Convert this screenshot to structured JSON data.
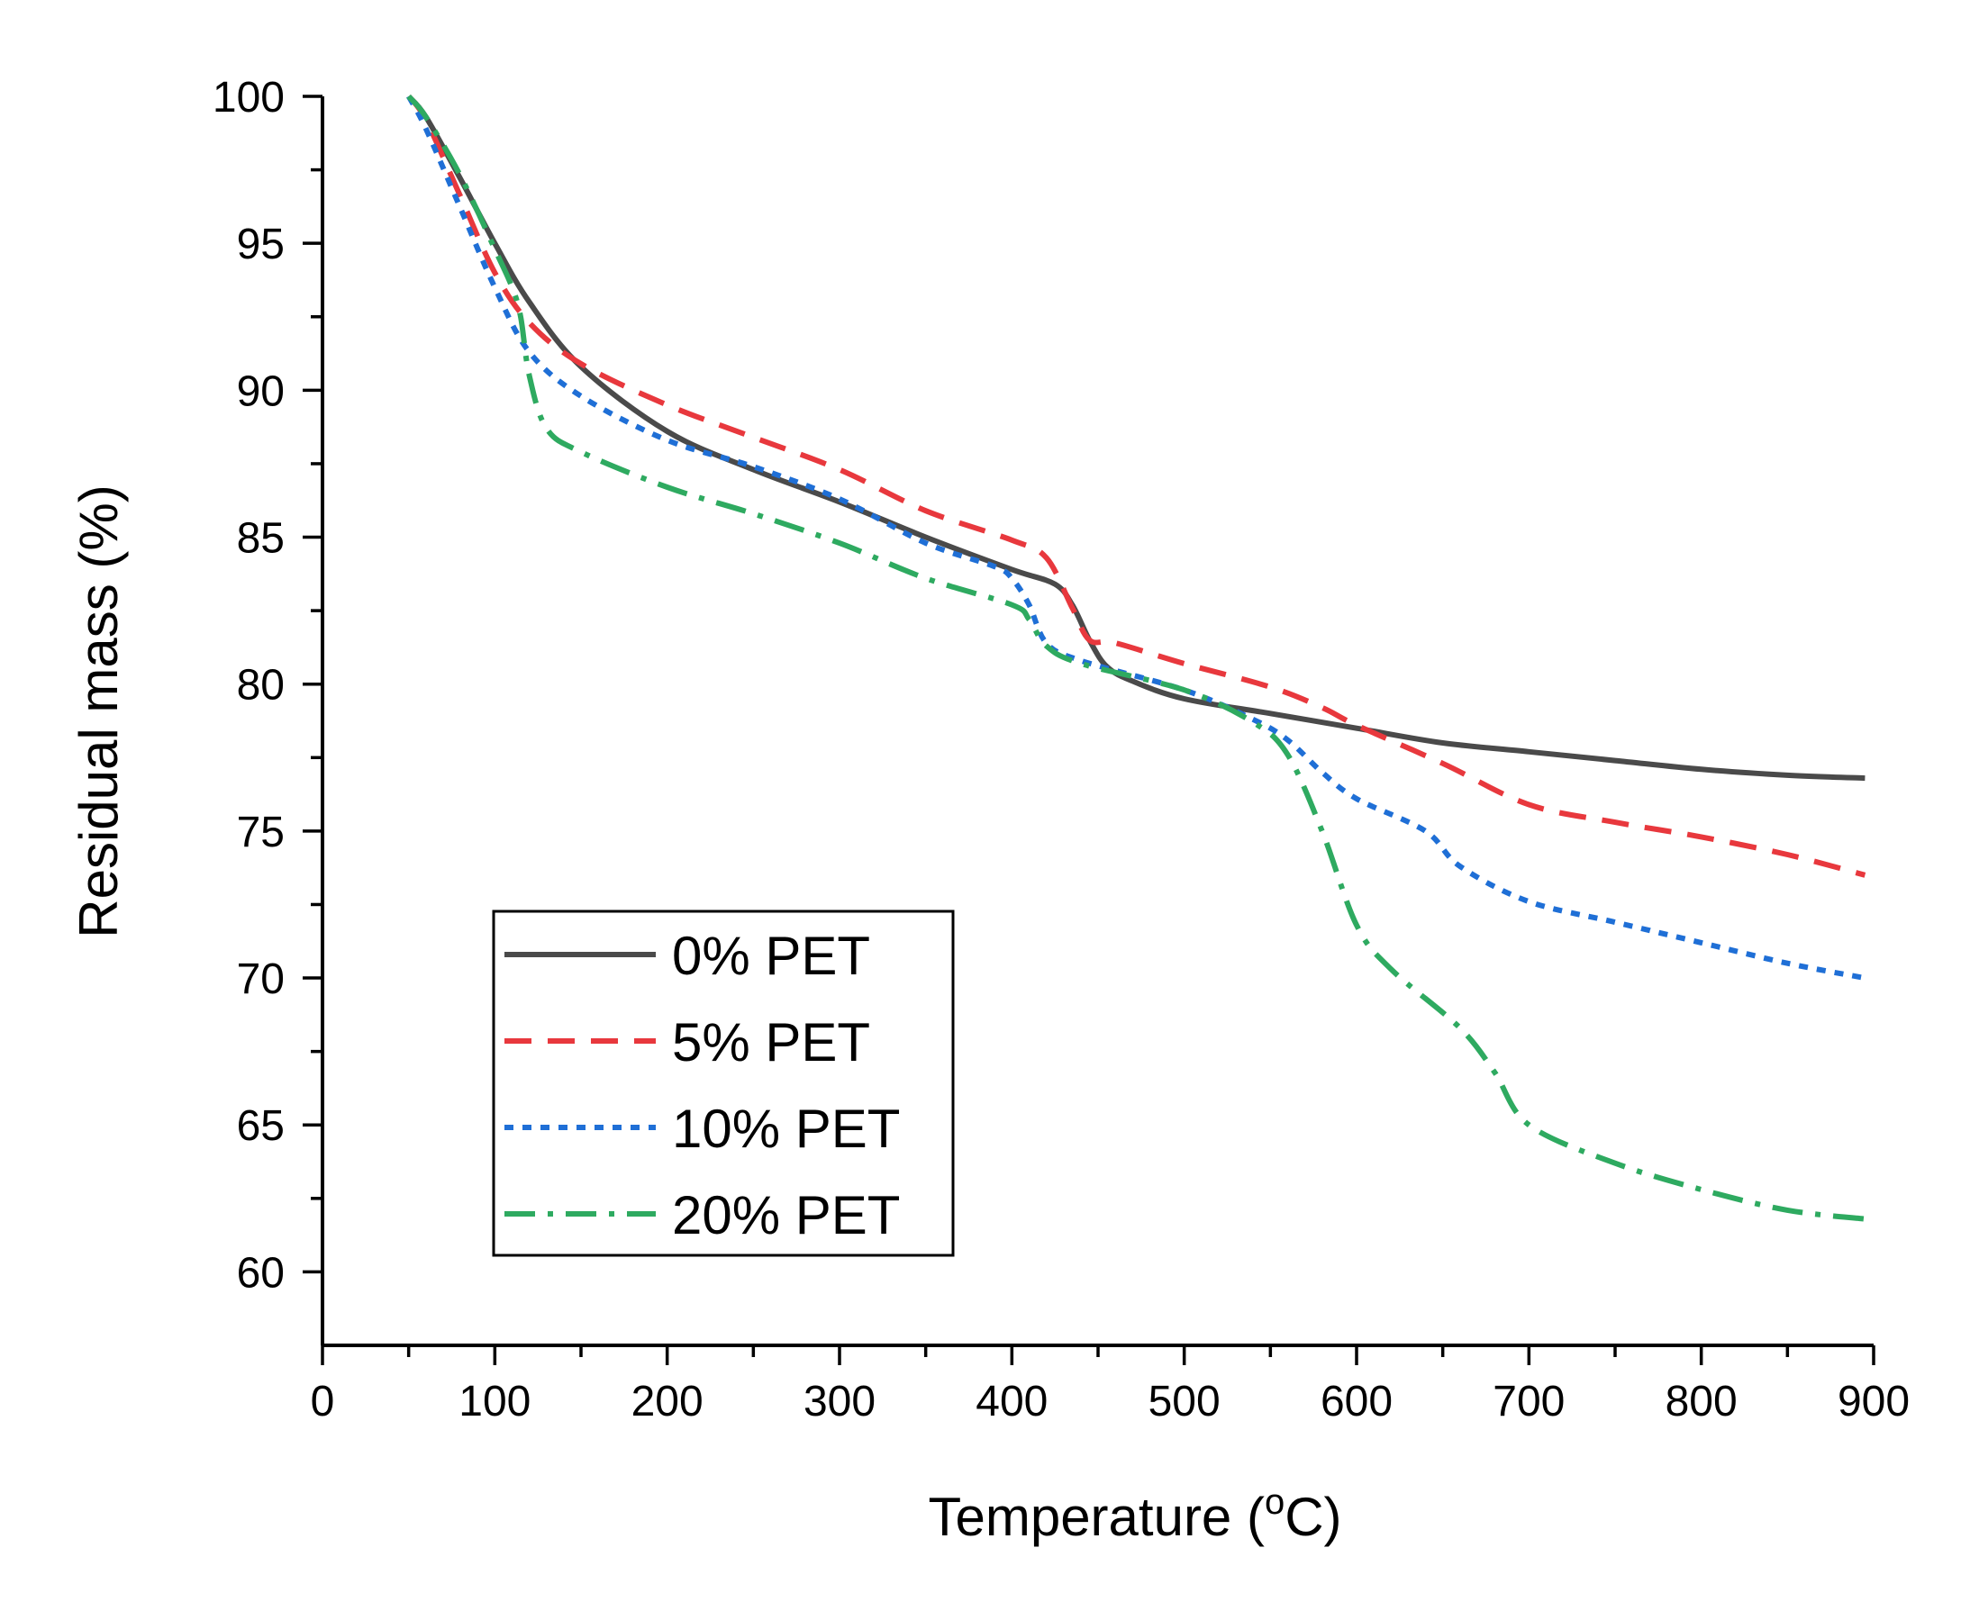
{
  "chart_data": {
    "type": "line",
    "title": "",
    "xlabel": "Temperature (",
    "xlabel_sup": "o",
    "xlabel_suffix": "C)",
    "ylabel": "Residual mass (%)",
    "xlim": [
      0,
      900
    ],
    "ylim": [
      57.5,
      100
    ],
    "xticks": [
      "0",
      "100",
      "200",
      "300",
      "400",
      "500",
      "600",
      "700",
      "800",
      "900"
    ],
    "yticks": [
      "60",
      "65",
      "70",
      "75",
      "80",
      "85",
      "90",
      "95",
      "100"
    ],
    "grid": false,
    "legend_position": "bottom-left",
    "series": [
      {
        "name": "0% PET",
        "color": "#4a4a4a",
        "style": "solid",
        "x": [
          50,
          60,
          80,
          100,
          120,
          150,
          200,
          250,
          300,
          350,
          400,
          425,
          435,
          445,
          455,
          470,
          500,
          550,
          600,
          650,
          700,
          750,
          800,
          850,
          895
        ],
        "y": [
          100,
          99.3,
          97.2,
          95.0,
          93.0,
          90.8,
          88.6,
          87.3,
          86.2,
          85.0,
          83.9,
          83.4,
          82.7,
          81.5,
          80.6,
          80.1,
          79.5,
          79.0,
          78.5,
          78.0,
          77.7,
          77.4,
          77.1,
          76.9,
          76.8
        ]
      },
      {
        "name": "5% PET",
        "color": "#e8383d",
        "style": "dashed",
        "x": [
          50,
          60,
          80,
          100,
          120,
          150,
          200,
          250,
          300,
          350,
          400,
          420,
          435,
          445,
          460,
          500,
          550,
          580,
          600,
          650,
          700,
          750,
          800,
          850,
          895
        ],
        "y": [
          100,
          99.2,
          96.6,
          94.0,
          92.3,
          90.9,
          89.5,
          88.4,
          87.3,
          85.9,
          84.9,
          84.3,
          82.6,
          81.5,
          81.4,
          80.7,
          79.9,
          79.2,
          78.6,
          77.3,
          75.9,
          75.3,
          74.8,
          74.2,
          73.5
        ]
      },
      {
        "name": "10% PET",
        "color": "#1f6fd6",
        "style": "dotted",
        "x": [
          50,
          60,
          80,
          100,
          120,
          150,
          200,
          250,
          300,
          350,
          390,
          400,
          410,
          420,
          440,
          500,
          540,
          560,
          580,
          600,
          640,
          660,
          700,
          750,
          800,
          850,
          895
        ],
        "y": [
          100,
          98.9,
          96.2,
          93.5,
          91.3,
          89.8,
          88.3,
          87.4,
          86.3,
          84.8,
          84.0,
          83.6,
          82.7,
          81.4,
          80.8,
          79.8,
          78.8,
          78.1,
          77.0,
          76.1,
          75.0,
          73.8,
          72.6,
          71.9,
          71.2,
          70.5,
          70.0
        ]
      },
      {
        "name": "20% PET",
        "color": "#2eaa60",
        "style": "dashdot",
        "x": [
          50,
          60,
          80,
          100,
          110,
          115,
          120,
          130,
          150,
          200,
          250,
          300,
          350,
          400,
          410,
          420,
          440,
          500,
          540,
          560,
          580,
          600,
          620,
          660,
          680,
          700,
          750,
          800,
          850,
          895
        ],
        "y": [
          100,
          99.3,
          97.3,
          94.8,
          93.5,
          92.5,
          90.5,
          88.7,
          87.9,
          86.7,
          85.8,
          84.8,
          83.6,
          82.7,
          82.2,
          81.3,
          80.7,
          79.8,
          78.7,
          77.6,
          75.0,
          71.8,
          70.3,
          68.3,
          66.8,
          65.0,
          63.7,
          62.8,
          62.1,
          61.8
        ]
      }
    ]
  }
}
